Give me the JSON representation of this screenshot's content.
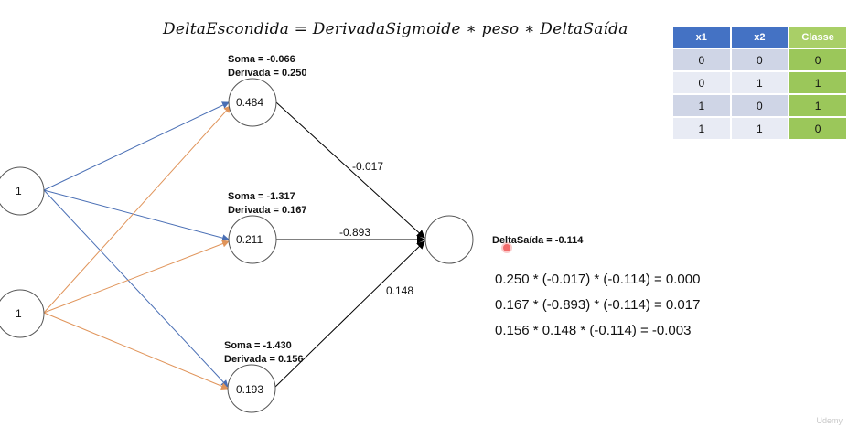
{
  "formula": "DeltaEscondida = DerivadaSigmoide  ∗ peso  ∗ DeltaSaída",
  "inputs": [
    {
      "value": "1"
    },
    {
      "value": "1"
    }
  ],
  "hidden": [
    {
      "soma": "Soma = -0.066",
      "derivada": "Derivada = 0.250",
      "value": "0.484",
      "weight": "-0.017"
    },
    {
      "soma": "Soma = -1.317",
      "derivada": "Derivada = 0.167",
      "value": "0.211",
      "weight": "-0.893"
    },
    {
      "soma": "Soma = -1.430",
      "derivada": "Derivada = 0.156",
      "value": "0.193",
      "weight": "0.148"
    }
  ],
  "output": {
    "delta_label": "DeltaSaída = -0.114"
  },
  "equations": [
    "0.250 * (-0.017) * (-0.114) = 0.000",
    "0.167 * (-0.893) * (-0.114) = 0.017",
    "0.156 * 0.148 * (-0.114) = -0.003"
  ],
  "table": {
    "headers": [
      "x1",
      "x2",
      "Classe"
    ],
    "rows": [
      [
        "0",
        "0",
        "0"
      ],
      [
        "0",
        "1",
        "1"
      ],
      [
        "1",
        "0",
        "1"
      ],
      [
        "1",
        "1",
        "0"
      ]
    ]
  },
  "colors": {
    "input1_edges": "#4a6fb5",
    "input2_edges": "#e0945a",
    "output_edges": "#000000",
    "header_blue": "#4472c4",
    "header_green": "#a9cf67"
  },
  "watermark": "Udemy"
}
